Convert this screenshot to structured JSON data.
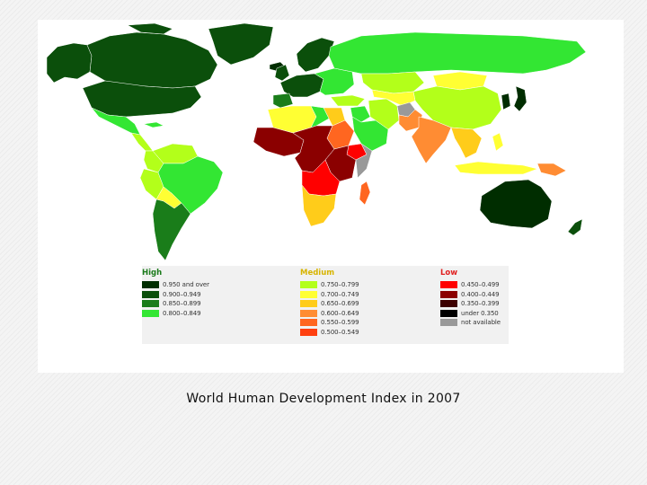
{
  "caption": "World Human Development Index in 2007",
  "legend": {
    "groups": [
      {
        "key": "high",
        "title": "High",
        "title_color": "#1a7a1a",
        "items": [
          {
            "label": "0.950 and over",
            "color": "#002d00"
          },
          {
            "label": "0.900–0.949",
            "color": "#0b4f0b"
          },
          {
            "label": "0.850–0.899",
            "color": "#1a7d1a"
          },
          {
            "label": "0.800–0.849",
            "color": "#33e633"
          }
        ]
      },
      {
        "key": "medium",
        "title": "Medium",
        "title_color": "#d7b400",
        "items": [
          {
            "label": "0.750–0.799",
            "color": "#b3ff1a"
          },
          {
            "label": "0.700–0.749",
            "color": "#ffff33"
          },
          {
            "label": "0.650–0.699",
            "color": "#ffcc1a"
          },
          {
            "label": "0.600–0.649",
            "color": "#ff8c33"
          },
          {
            "label": "0.550–0.599",
            "color": "#ff6620"
          },
          {
            "label": "0.500–0.549",
            "color": "#ff4010"
          }
        ]
      },
      {
        "key": "low",
        "title": "Low",
        "title_color": "#e02020",
        "items": [
          {
            "label": "0.450–0.499",
            "color": "#ff0000"
          },
          {
            "label": "0.400–0.449",
            "color": "#8b0000"
          },
          {
            "label": "0.350–0.399",
            "color": "#3d0000"
          },
          {
            "label": "under 0.350",
            "color": "#000000"
          },
          {
            "label": "not available",
            "color": "#999999"
          }
        ]
      }
    ]
  },
  "map": {
    "ocean_color": "#ffffff",
    "regions": [
      {
        "name": "alaska",
        "color": "#0b4f0b"
      },
      {
        "name": "canada",
        "color": "#0b4f0b"
      },
      {
        "name": "greenland",
        "color": "#0b4f0b"
      },
      {
        "name": "canadian-arctic-islands",
        "color": "#0b4f0b"
      },
      {
        "name": "iceland",
        "color": "#002d00"
      },
      {
        "name": "usa",
        "color": "#0b4f0b"
      },
      {
        "name": "mexico",
        "color": "#33e633"
      },
      {
        "name": "cuba",
        "color": "#33e633"
      },
      {
        "name": "central-america",
        "color": "#b3ff1a"
      },
      {
        "name": "northern-south-america",
        "color": "#b3ff1a"
      },
      {
        "name": "colombia",
        "color": "#b3ff1a"
      },
      {
        "name": "peru",
        "color": "#b3ff1a"
      },
      {
        "name": "brazil",
        "color": "#33e633"
      },
      {
        "name": "bolivia",
        "color": "#ffff33"
      },
      {
        "name": "argentina-chile",
        "color": "#1a7d1a"
      },
      {
        "name": "scandinavia",
        "color": "#0b4f0b"
      },
      {
        "name": "western-europe",
        "color": "#0b4f0b"
      },
      {
        "name": "uk-ireland",
        "color": "#0b4f0b"
      },
      {
        "name": "iberia",
        "color": "#1a7d1a"
      },
      {
        "name": "eastern-europe",
        "color": "#33e633"
      },
      {
        "name": "russia",
        "color": "#33e633"
      },
      {
        "name": "kazakhstan",
        "color": "#b3ff1a"
      },
      {
        "name": "mongolia",
        "color": "#ffff33"
      },
      {
        "name": "china",
        "color": "#b3ff1a"
      },
      {
        "name": "turkey",
        "color": "#b3ff1a"
      },
      {
        "name": "middle-east",
        "color": "#33e633"
      },
      {
        "name": "arabian-peninsula",
        "color": "#33e633"
      },
      {
        "name": "iran",
        "color": "#b3ff1a"
      },
      {
        "name": "central-asia",
        "color": "#ffff33"
      },
      {
        "name": "afghanistan",
        "color": "#999999"
      },
      {
        "name": "pakistan",
        "color": "#ff8c33"
      },
      {
        "name": "india",
        "color": "#ff8c33"
      },
      {
        "name": "southeast-asia",
        "color": "#ffcc1a"
      },
      {
        "name": "korea",
        "color": "#002d00"
      },
      {
        "name": "japan",
        "color": "#002d00"
      },
      {
        "name": "philippines",
        "color": "#ffff33"
      },
      {
        "name": "indonesia",
        "color": "#ffff33"
      },
      {
        "name": "papua-new-guinea",
        "color": "#ff8c33"
      },
      {
        "name": "australia",
        "color": "#002d00"
      },
      {
        "name": "new-zealand",
        "color": "#0b4f0b"
      },
      {
        "name": "north-africa",
        "color": "#ffff33"
      },
      {
        "name": "egypt",
        "color": "#ffcc1a"
      },
      {
        "name": "libya",
        "color": "#33e633"
      },
      {
        "name": "west-africa",
        "color": "#8b0000"
      },
      {
        "name": "central-africa",
        "color": "#8b0000"
      },
      {
        "name": "sudan",
        "color": "#ff6620"
      },
      {
        "name": "ethiopia",
        "color": "#ff0000"
      },
      {
        "name": "somalia",
        "color": "#999999"
      },
      {
        "name": "east-africa",
        "color": "#8b0000"
      },
      {
        "name": "southern-central-africa",
        "color": "#ff0000"
      },
      {
        "name": "southern-africa",
        "color": "#ffcc1a"
      },
      {
        "name": "madagascar",
        "color": "#ff6620"
      }
    ]
  }
}
